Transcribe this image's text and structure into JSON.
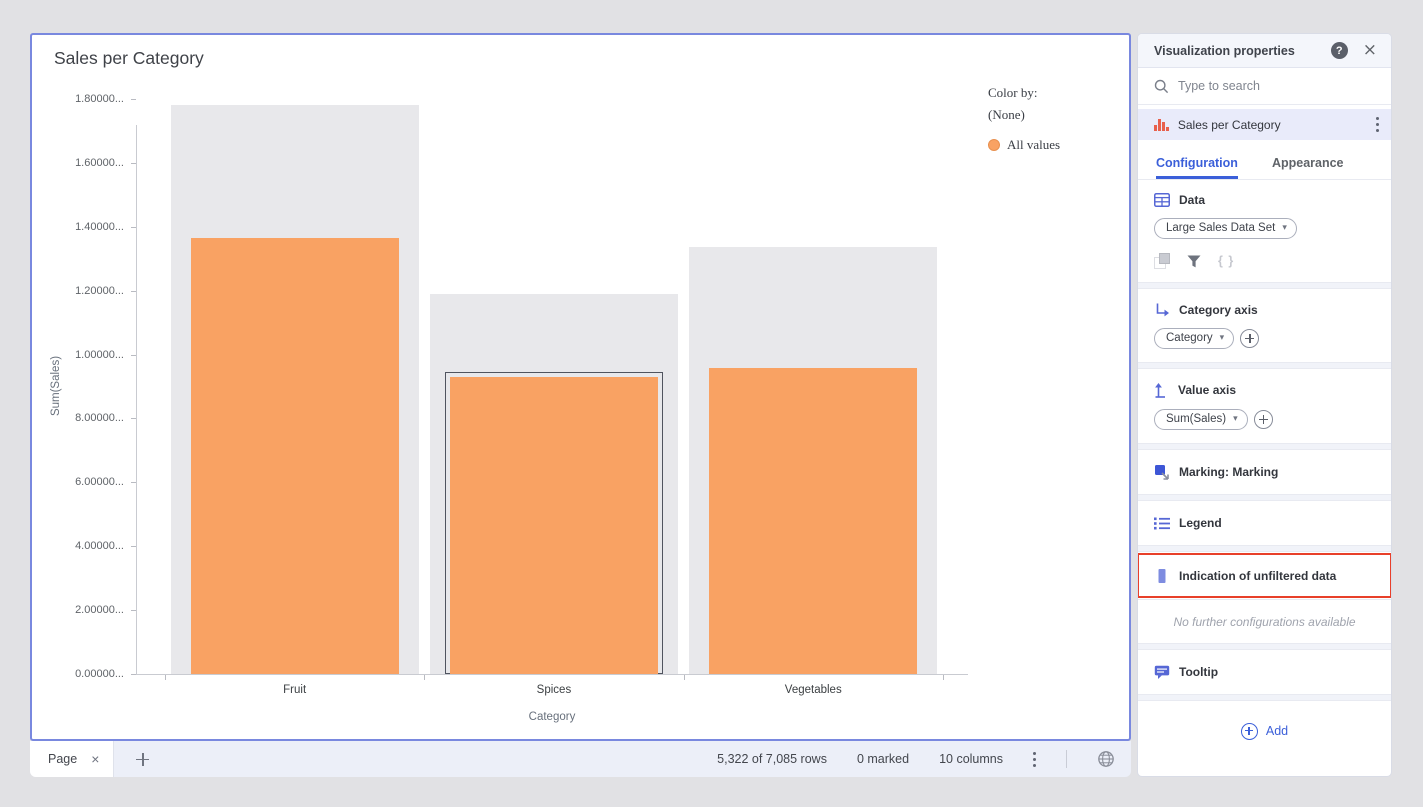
{
  "chart": {
    "title": "Sales per Category",
    "legend": {
      "color_by_label": "Color by:",
      "color_by_value": "(None)",
      "items": [
        {
          "label": "All values",
          "color": "#F9A263"
        }
      ]
    },
    "chart_data": {
      "type": "bar",
      "title": "Sales per Category",
      "xlabel": "Category",
      "ylabel": "Sum(Sales)",
      "categories": [
        "Fruit",
        "Spices",
        "Vegetables"
      ],
      "series": [
        {
          "name": "Unfiltered data indication",
          "color": "#E8E8EB",
          "values": [
            1780000,
            1190000,
            1337000
          ]
        },
        {
          "name": "Sum(Sales)",
          "color": "#F9A263",
          "values": [
            1365000,
            930000,
            957000
          ]
        }
      ],
      "highlighted_category": "Spices",
      "ylim": [
        0,
        1800000
      ],
      "yticks": {
        "values": [
          0,
          200000,
          400000,
          600000,
          800000,
          1000000,
          1200000,
          1400000,
          1600000,
          1800000
        ],
        "labels": [
          "0.00000...",
          "2.00000...",
          "4.00000...",
          "6.00000...",
          "8.00000...",
          "1.00000...",
          "1.20000...",
          "1.40000...",
          "1.60000...",
          "1.80000..."
        ]
      },
      "legend_position": "right",
      "grid": false
    }
  },
  "page_tabs": {
    "active_tab": "Page"
  },
  "status_bar": {
    "rows": "5,322 of 7,085 rows",
    "marked": "0 marked",
    "columns": "10 columns"
  },
  "panel": {
    "title": "Visualization properties",
    "search_placeholder": "Type to search",
    "visualization_label": "Sales per Category",
    "tabs": {
      "configuration": "Configuration",
      "appearance": "Appearance"
    },
    "data_section": {
      "label": "Data",
      "dataset": "Large Sales Data Set"
    },
    "category_axis": {
      "label": "Category axis",
      "expression": "Category"
    },
    "value_axis": {
      "label": "Value axis",
      "expression": "Sum(Sales)"
    },
    "marking": {
      "label": "Marking: Marking"
    },
    "legend": {
      "label": "Legend"
    },
    "unfiltered": {
      "label": "Indication of unfiltered data",
      "highlighted": true
    },
    "empty_note": "No further configurations available",
    "tooltip": {
      "label": "Tooltip"
    },
    "add_label": "Add"
  },
  "colors": {
    "accent_blue": "#3B5FD9",
    "icon_blue": "#5667D5",
    "bar_orange": "#F9A263",
    "unfiltered_gray": "#E8E8EB",
    "highlight_red": "#E8402A",
    "card_border": "#7988DF"
  }
}
